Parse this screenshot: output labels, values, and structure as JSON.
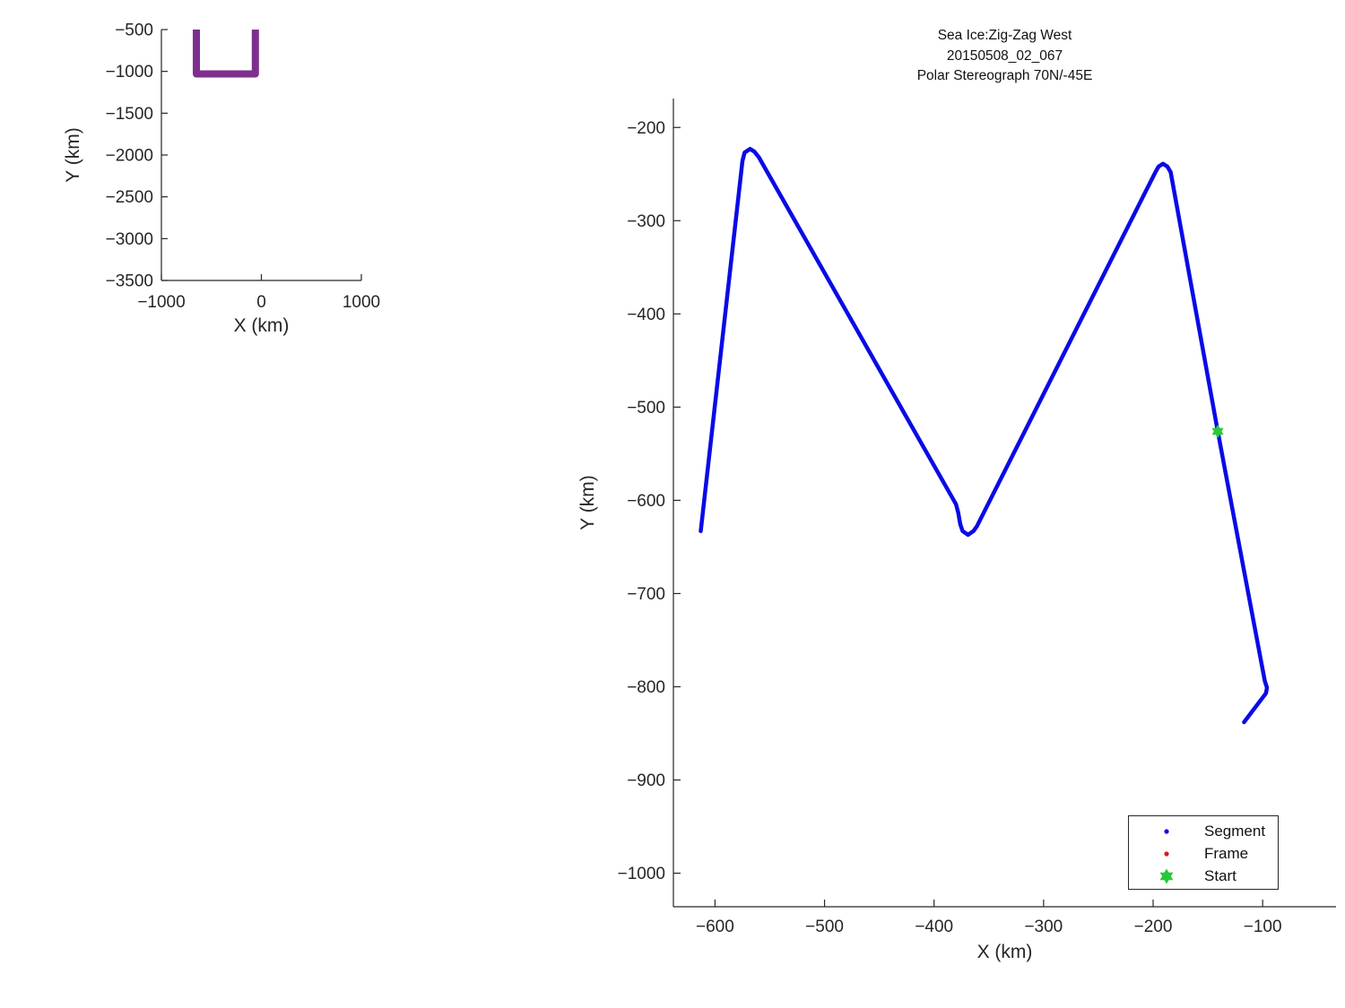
{
  "figure": {
    "background": "#ffffff",
    "text_color": "#262626"
  },
  "chart_data": [
    {
      "name": "overview",
      "type": "line",
      "xlabel": "X (km)",
      "ylabel": "Y (km)",
      "xlim": [
        -1000,
        1000
      ],
      "ylim": [
        -3500,
        -500
      ],
      "xticks": [
        -1000,
        0,
        1000
      ],
      "yticks": [
        -500,
        -1000,
        -1500,
        -2000,
        -2500,
        -3000,
        -3500
      ],
      "grid": false,
      "series": [
        {
          "name": "track",
          "color": "#7E2F8E",
          "line_width": 8,
          "line_cap": "butt",
          "points": [
            [
              -650,
              -500
            ],
            [
              -650,
              -1030
            ],
            [
              -60,
              -1030
            ],
            [
              -60,
              -500
            ]
          ]
        }
      ]
    },
    {
      "name": "detail",
      "type": "line",
      "title_lines": [
        "Sea Ice:Zig-Zag West",
        "20150508_02_067",
        "Polar Stereograph 70N/-45E"
      ],
      "xlabel": "X (km)",
      "ylabel": "Y (km)",
      "xlim": [
        -638,
        -33
      ],
      "ylim": [
        -1036,
        -169
      ],
      "xticks": [
        -600,
        -500,
        -400,
        -300,
        -200,
        -100
      ],
      "yticks": [
        -200,
        -300,
        -400,
        -500,
        -600,
        -700,
        -800,
        -900,
        -1000
      ],
      "grid": false,
      "series": [
        {
          "name": "Segment",
          "color": "#0A0AE6",
          "line_width": 4.5,
          "line_cap": "round",
          "points": [
            [
              -613,
              -633
            ],
            [
              -575,
              -236
            ],
            [
              -573,
              -227
            ],
            [
              -568,
              -223
            ],
            [
              -564,
              -226
            ],
            [
              -560,
              -232
            ],
            [
              -383,
              -598
            ],
            [
              -380,
              -604
            ],
            [
              -378,
              -613
            ],
            [
              -376,
              -626
            ],
            [
              -374,
              -633
            ],
            [
              -369,
              -637
            ],
            [
              -364,
              -633
            ],
            [
              -361,
              -628
            ],
            [
              -198,
              -248
            ],
            [
              -195,
              -242
            ],
            [
              -191,
              -239
            ],
            [
              -187,
              -242
            ],
            [
              -184,
              -248
            ],
            [
              -141,
              -526
            ],
            [
              -98,
              -794
            ],
            [
              -96,
              -801
            ],
            [
              -97,
              -807
            ],
            [
              -117,
              -838
            ]
          ]
        }
      ],
      "start_marker": {
        "label": "Start",
        "color": "#27C938",
        "x": -141,
        "y": -526
      },
      "legend": {
        "position": "lower-right",
        "entries": [
          {
            "label": "Segment",
            "marker": "dot",
            "color": "#0A0AE6"
          },
          {
            "label": "Frame",
            "marker": "dot",
            "color": "#E01414"
          },
          {
            "label": "Start",
            "marker": "hexagram",
            "color": "#27C938"
          }
        ]
      }
    }
  ]
}
